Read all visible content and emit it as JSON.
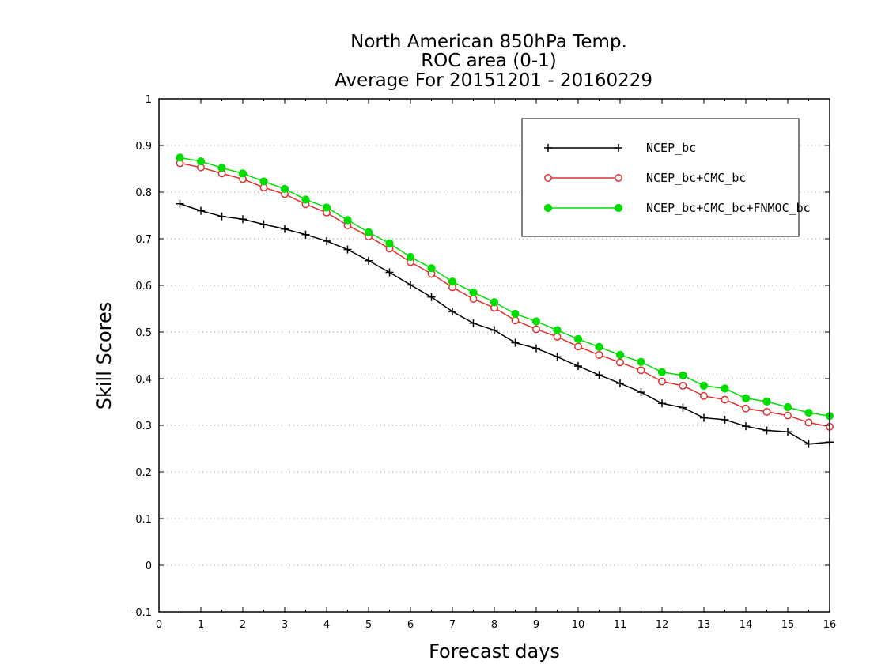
{
  "chart_data": {
    "type": "line",
    "title_lines": [
      "North American 850hPa Temp.",
      "ROC area (0-1)",
      "Average For 20151201 - 20160229"
    ],
    "xlabel": "Forecast days",
    "ylabel": "Skill Scores",
    "xlim": [
      0,
      16
    ],
    "ylim": [
      -0.1,
      1
    ],
    "xticks": [
      0,
      1,
      2,
      3,
      4,
      5,
      6,
      7,
      8,
      9,
      10,
      11,
      12,
      13,
      14,
      15,
      16
    ],
    "xtick_labels": [
      "0",
      "1",
      "2",
      "3",
      "4",
      "5",
      "6",
      "7",
      "8",
      "9",
      "10",
      "11",
      "12",
      "13",
      "14",
      "15",
      "16"
    ],
    "yticks": [
      -0.1,
      0,
      0.1,
      0.2,
      0.3,
      0.4,
      0.5,
      0.6,
      0.7,
      0.8,
      0.9,
      1
    ],
    "ytick_labels": [
      "-0.1",
      "0",
      "0.1",
      "0.2",
      "0.3",
      "0.4",
      "0.5",
      "0.6",
      "0.7",
      "0.8",
      "0.9",
      "1"
    ],
    "grid": "horizontal dotted",
    "legend_position": "top-right",
    "x": [
      0.5,
      1,
      1.5,
      2,
      2.5,
      3,
      3.5,
      4,
      4.5,
      5,
      5.5,
      6,
      6.5,
      7,
      7.5,
      8,
      8.5,
      9,
      9.5,
      10,
      10.5,
      11,
      11.5,
      12,
      12.5,
      13,
      13.5,
      14,
      14.5,
      15,
      15.5,
      16
    ],
    "series": [
      {
        "name": "NCEP_bc",
        "color": "#000000",
        "marker": "plus",
        "values": [
          0.775,
          0.76,
          0.748,
          0.742,
          0.731,
          0.721,
          0.709,
          0.695,
          0.677,
          0.653,
          0.628,
          0.601,
          0.575,
          0.544,
          0.519,
          0.504,
          0.477,
          0.465,
          0.447,
          0.427,
          0.408,
          0.39,
          0.371,
          0.347,
          0.338,
          0.316,
          0.312,
          0.298,
          0.289,
          0.286,
          0.26,
          0.264
        ]
      },
      {
        "name": "NCEP_bc+CMC_bc",
        "color": "#e0302f",
        "marker": "open-circle",
        "values": [
          0.862,
          0.853,
          0.84,
          0.828,
          0.81,
          0.796,
          0.774,
          0.756,
          0.729,
          0.705,
          0.679,
          0.65,
          0.625,
          0.596,
          0.571,
          0.552,
          0.525,
          0.506,
          0.49,
          0.469,
          0.451,
          0.435,
          0.418,
          0.394,
          0.385,
          0.363,
          0.355,
          0.336,
          0.329,
          0.321,
          0.306,
          0.297
        ]
      },
      {
        "name": "NCEP_bc+CMC_bc+FNMOC_bc",
        "color": "#00dd00",
        "marker": "filled-circle",
        "values": [
          0.874,
          0.866,
          0.852,
          0.84,
          0.823,
          0.807,
          0.784,
          0.767,
          0.74,
          0.714,
          0.69,
          0.661,
          0.637,
          0.608,
          0.585,
          0.564,
          0.539,
          0.523,
          0.504,
          0.485,
          0.468,
          0.451,
          0.436,
          0.414,
          0.407,
          0.385,
          0.379,
          0.358,
          0.351,
          0.339,
          0.327,
          0.32
        ]
      }
    ]
  }
}
